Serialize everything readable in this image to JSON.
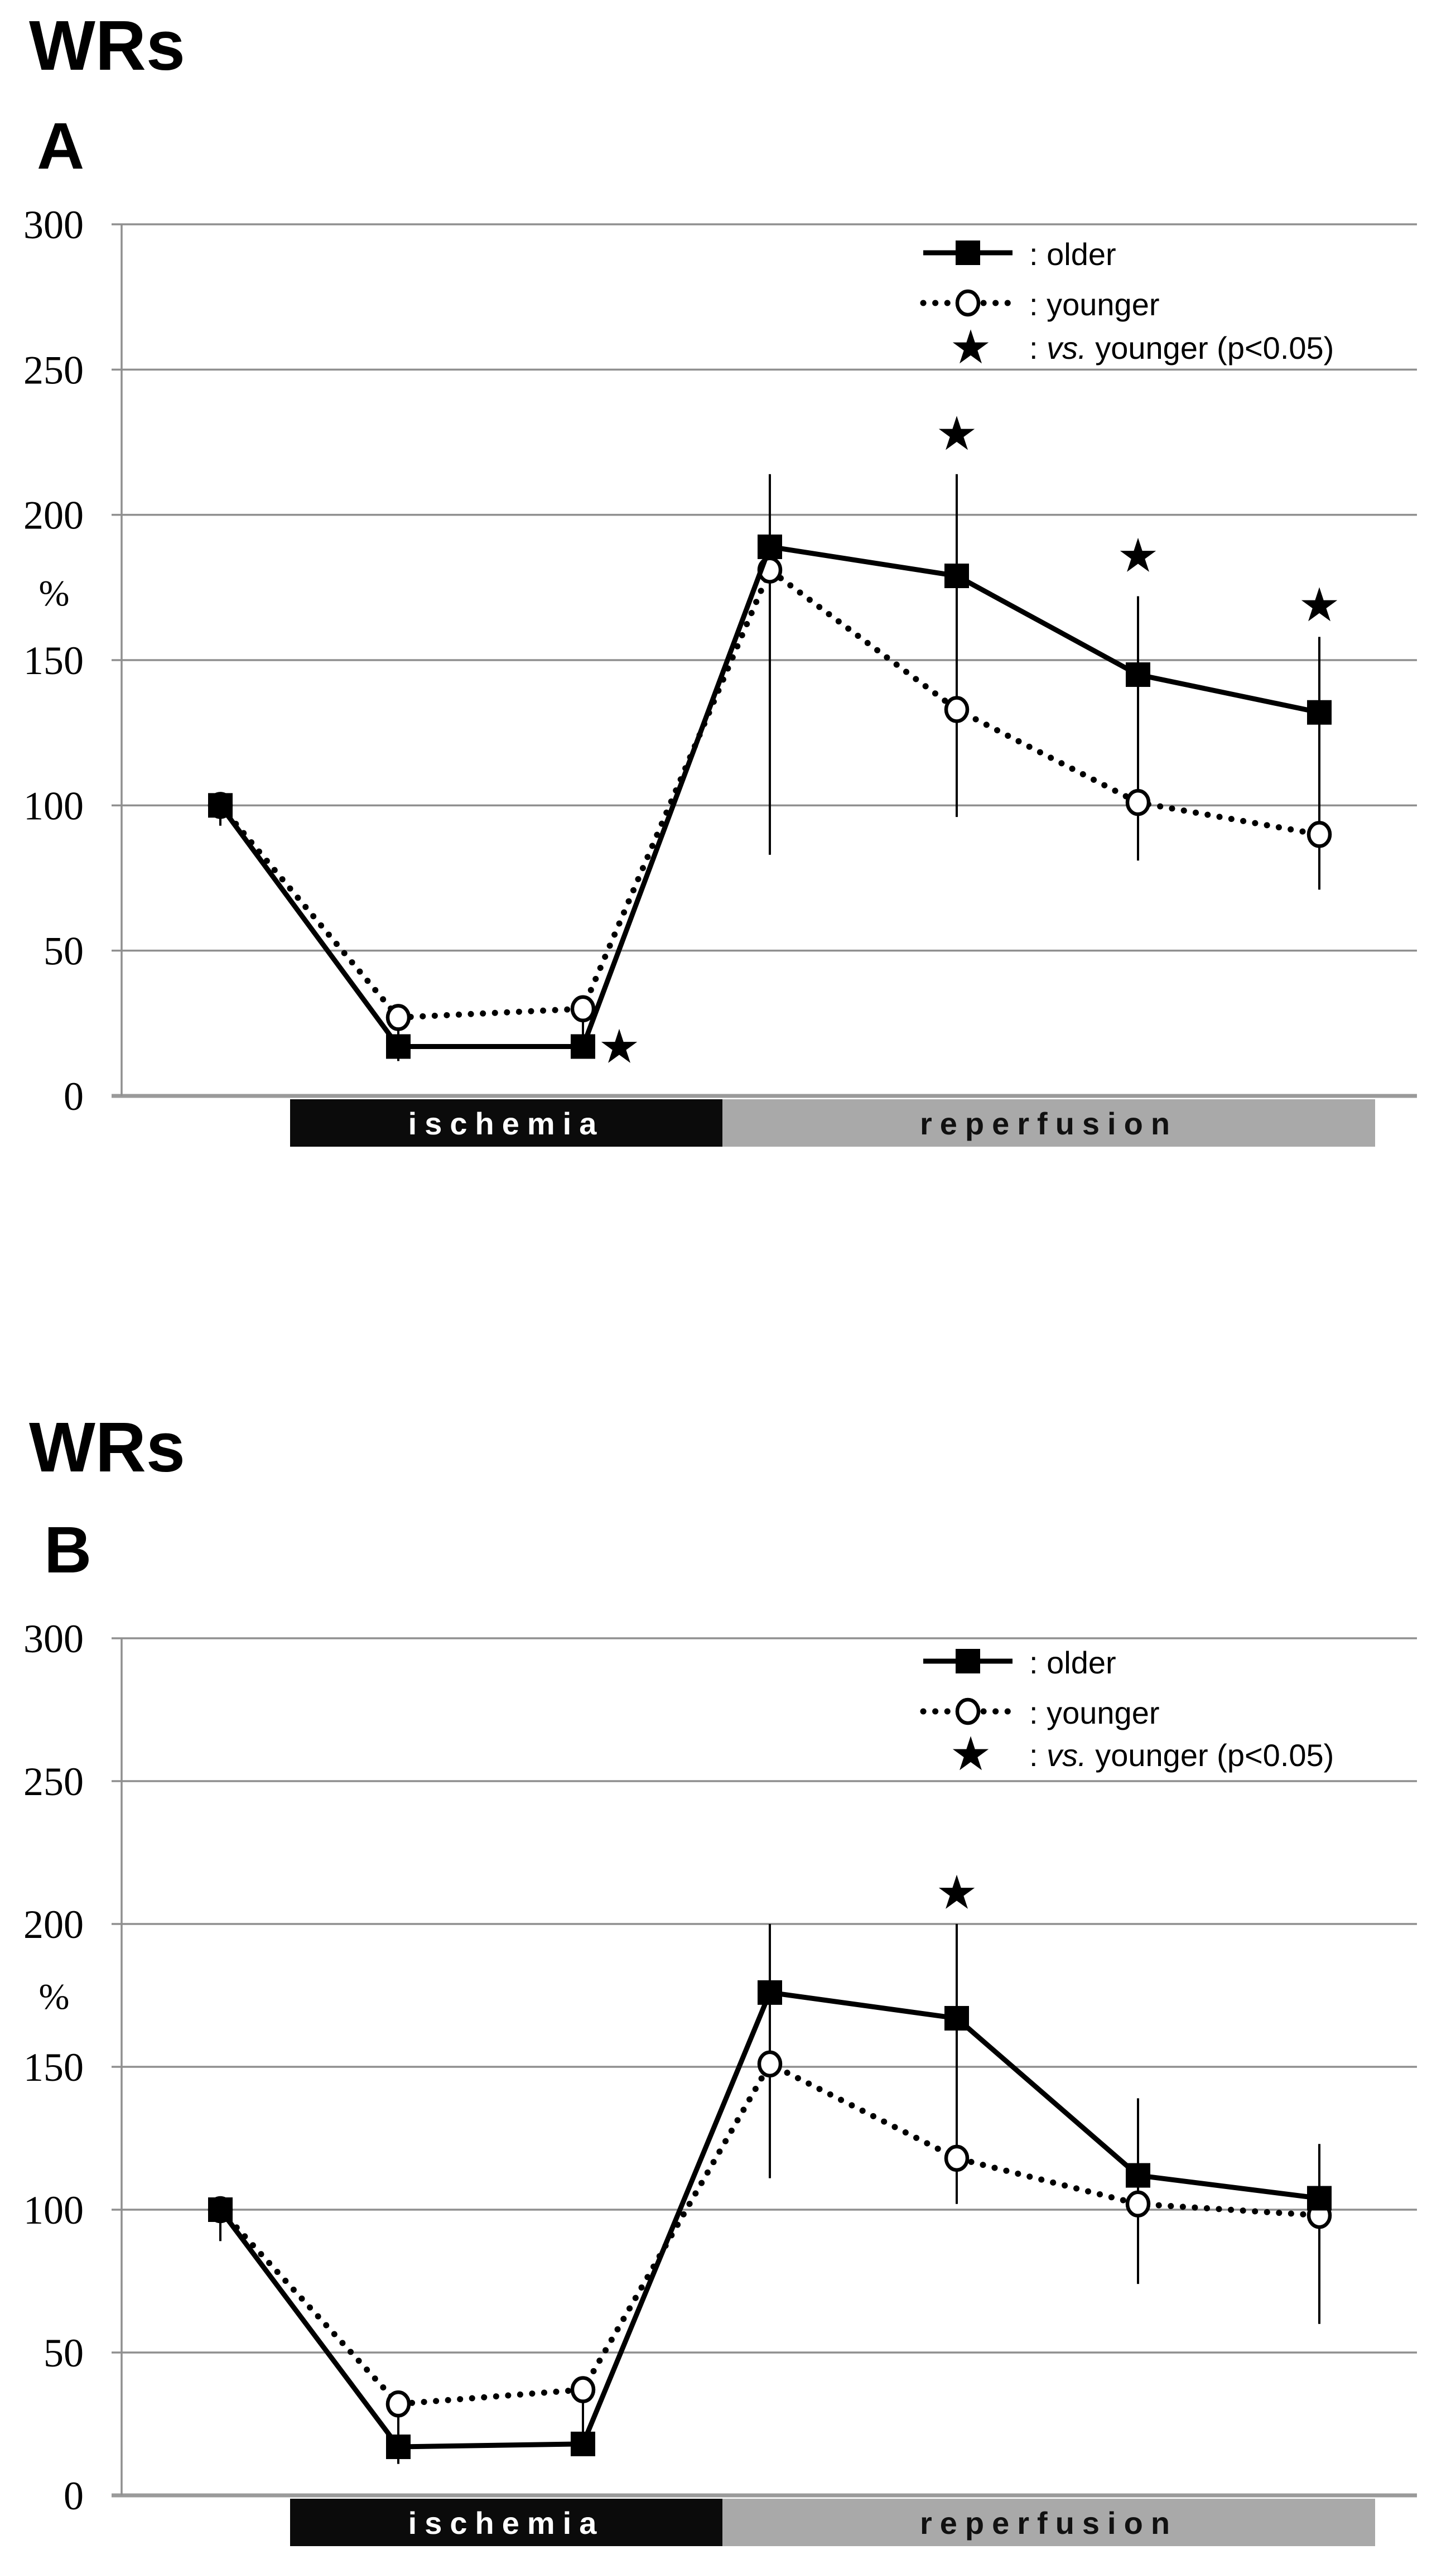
{
  "figure": {
    "background": "#ffffff",
    "grid_color": "#8f8f8f",
    "description": "Two stacked line charts (panels A and B) of WRs (%) across ischemia and reperfusion"
  },
  "legend": {
    "older": ": older",
    "younger": ": younger",
    "star_prefix": ": ",
    "star_italic": "vs.",
    "star_rest": " younger (p<0.05)",
    "star_symbol": "★"
  },
  "chart_data": [
    {
      "type": "line",
      "panel": "A",
      "title": "WRs",
      "ylabel": "%",
      "ylim": [
        0,
        300
      ],
      "y_ticks": [
        300,
        250,
        200,
        150,
        100,
        50,
        0
      ],
      "x_axis": {
        "tick_labels_visible": false,
        "n_points": 7
      },
      "grid": true,
      "legend_position": "top-right",
      "series": [
        {
          "name": "older",
          "marker": "filled-square",
          "line": "solid",
          "values": [
            100,
            17,
            17,
            189,
            179,
            145,
            132
          ]
        },
        {
          "name": "younger",
          "marker": "open-circle",
          "line": "dotted",
          "values": [
            100,
            27,
            30,
            181,
            133,
            101,
            90
          ]
        }
      ],
      "error_bars": [
        {
          "point": 1,
          "from": 100,
          "to": 93
        },
        {
          "point": 2,
          "from": 27,
          "to": 12
        },
        {
          "point": 3,
          "from": 30,
          "to": 17
        },
        {
          "point": 4,
          "from": 214,
          "to": 83
        },
        {
          "point": 5,
          "from": 214,
          "to": 96
        },
        {
          "point": 6,
          "from": 172,
          "to": 81
        },
        {
          "point": 7,
          "from": 158,
          "to": 71
        }
      ],
      "stars": [
        {
          "point": 3,
          "value": 17,
          "placement": "right"
        },
        {
          "point": 5,
          "value": 228,
          "placement": "above"
        },
        {
          "point": 6,
          "value": 186,
          "placement": "above"
        },
        {
          "point": 7,
          "value": 169,
          "placement": "above"
        }
      ],
      "phases": [
        {
          "label": "ischemia",
          "color": "#0b0b0b",
          "text_color": "#ffffff",
          "points": [
            2,
            3
          ]
        },
        {
          "label": "reperfusion",
          "color": "#a9a9a9",
          "text_color": "#111111",
          "points": [
            4,
            7
          ]
        }
      ]
    },
    {
      "type": "line",
      "panel": "B",
      "title": "WRs",
      "ylabel": "%",
      "ylim": [
        0,
        300
      ],
      "y_ticks": [
        300,
        250,
        200,
        150,
        100,
        50,
        0
      ],
      "x_axis": {
        "tick_labels_visible": false,
        "n_points": 7
      },
      "grid": true,
      "legend_position": "top-right",
      "series": [
        {
          "name": "older",
          "marker": "filled-square",
          "line": "solid",
          "values": [
            100,
            17,
            18,
            176,
            167,
            112,
            104
          ]
        },
        {
          "name": "younger",
          "marker": "open-circle",
          "line": "dotted",
          "values": [
            100,
            32,
            37,
            151,
            118,
            102,
            98
          ]
        }
      ],
      "error_bars": [
        {
          "point": 1,
          "from": 100,
          "to": 89
        },
        {
          "point": 2,
          "from": 32,
          "to": 11
        },
        {
          "point": 3,
          "from": 37,
          "to": 20
        },
        {
          "point": 4,
          "from": 200,
          "to": 111
        },
        {
          "point": 5,
          "from": 200,
          "to": 102
        },
        {
          "point": 6,
          "from": 139,
          "to": 74
        },
        {
          "point": 7,
          "from": 123,
          "to": 60
        }
      ],
      "stars": [
        {
          "point": 5,
          "value": 211,
          "placement": "above"
        }
      ],
      "phases": [
        {
          "label": "ischemia",
          "color": "#0b0b0b",
          "text_color": "#ffffff",
          "points": [
            2,
            3
          ]
        },
        {
          "label": "reperfusion",
          "color": "#a9a9a9",
          "text_color": "#111111",
          "points": [
            4,
            7
          ]
        }
      ]
    }
  ]
}
